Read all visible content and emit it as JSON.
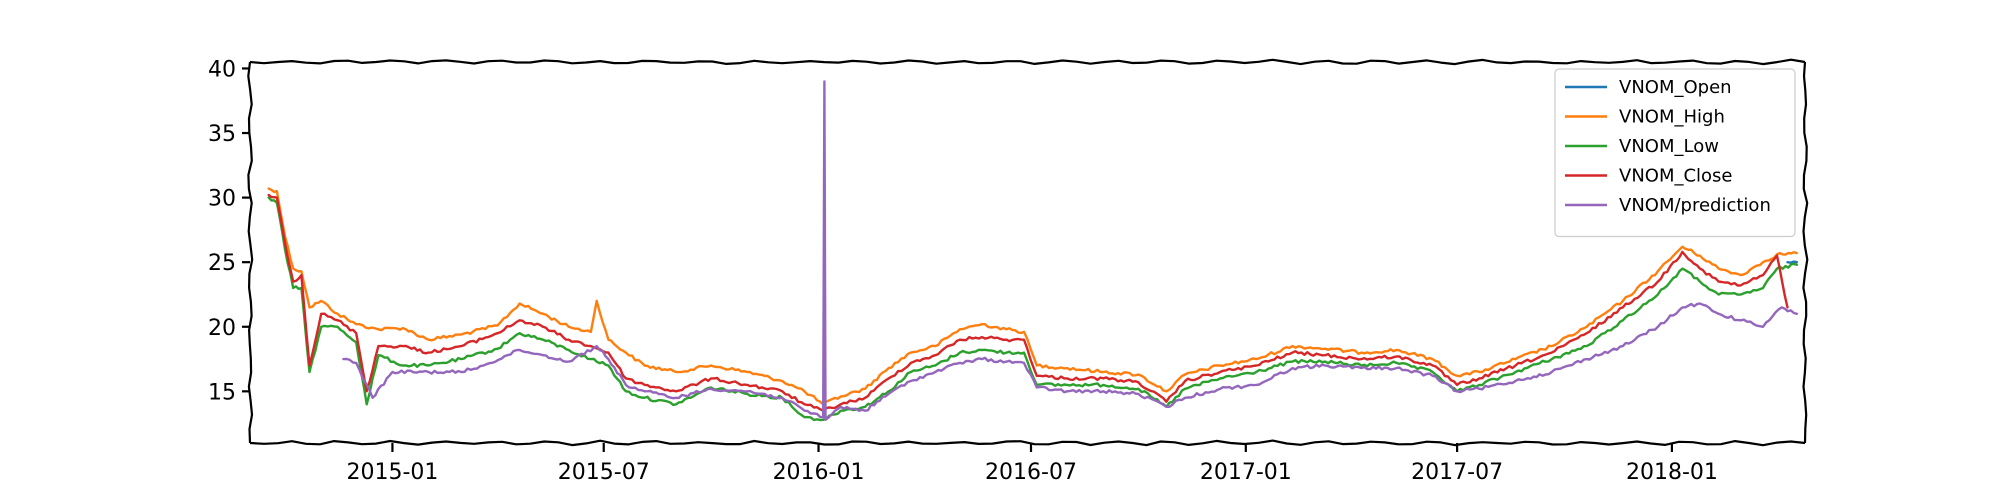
{
  "chart_data": {
    "type": "line",
    "title": "",
    "xlabel": "",
    "ylabel": "",
    "x_range": [
      "2014-09-01",
      "2018-04-25"
    ],
    "ylim": [
      11,
      40.5
    ],
    "x_ticks": [
      {
        "date": "2015-01-01",
        "label": "2015-01"
      },
      {
        "date": "2015-07-01",
        "label": "2015-07"
      },
      {
        "date": "2016-01-01",
        "label": "2016-01"
      },
      {
        "date": "2016-07-01",
        "label": "2016-07"
      },
      {
        "date": "2017-01-01",
        "label": "2017-01"
      },
      {
        "date": "2017-07-01",
        "label": "2017-07"
      },
      {
        "date": "2018-01-01",
        "label": "2018-01"
      }
    ],
    "y_ticks": [
      {
        "value": 15,
        "label": "15"
      },
      {
        "value": 20,
        "label": "20"
      },
      {
        "value": 25,
        "label": "25"
      },
      {
        "value": 30,
        "label": "30"
      },
      {
        "value": 35,
        "label": "35"
      },
      {
        "value": 40,
        "label": "40"
      }
    ],
    "grid": false,
    "legend_position": "top-right",
    "series": [
      {
        "name": "VNOM_Open",
        "color": "#1f77b4",
        "points": [
          [
            "2018-04-10",
            25.0
          ],
          [
            "2018-04-18",
            25.0
          ]
        ]
      },
      {
        "name": "VNOM_High",
        "color": "#ff7f0e",
        "points": [
          [
            "2014-09-17",
            30.7
          ],
          [
            "2014-09-24",
            30.5
          ],
          [
            "2014-10-01",
            27.0
          ],
          [
            "2014-10-08",
            24.5
          ],
          [
            "2014-10-15",
            24.3
          ],
          [
            "2014-10-22",
            21.5
          ],
          [
            "2014-11-01",
            22.0
          ],
          [
            "2014-11-15",
            21.0
          ],
          [
            "2014-12-01",
            20.2
          ],
          [
            "2014-12-20",
            19.8
          ],
          [
            "2015-01-10",
            19.9
          ],
          [
            "2015-02-01",
            19.0
          ],
          [
            "2015-03-01",
            19.4
          ],
          [
            "2015-04-01",
            20.1
          ],
          [
            "2015-04-20",
            21.8
          ],
          [
            "2015-05-10",
            21.0
          ],
          [
            "2015-06-01",
            20.0
          ],
          [
            "2015-06-20",
            19.6
          ],
          [
            "2015-06-25",
            22.0
          ],
          [
            "2015-07-05",
            19.0
          ],
          [
            "2015-07-20",
            18.0
          ],
          [
            "2015-08-05",
            17.0
          ],
          [
            "2015-09-01",
            16.5
          ],
          [
            "2015-10-01",
            17.0
          ],
          [
            "2015-11-01",
            16.5
          ],
          [
            "2015-12-01",
            15.8
          ],
          [
            "2015-12-20",
            15.0
          ],
          [
            "2016-01-05",
            14.0
          ],
          [
            "2016-01-20",
            14.6
          ],
          [
            "2016-02-10",
            15.2
          ],
          [
            "2016-03-01",
            16.8
          ],
          [
            "2016-03-20",
            18.0
          ],
          [
            "2016-04-10",
            18.5
          ],
          [
            "2016-05-01",
            19.8
          ],
          [
            "2016-05-20",
            20.2
          ],
          [
            "2016-06-10",
            19.8
          ],
          [
            "2016-06-25",
            19.6
          ],
          [
            "2016-07-06",
            17.0
          ],
          [
            "2016-08-01",
            16.8
          ],
          [
            "2016-09-01",
            16.5
          ],
          [
            "2016-10-01",
            16.3
          ],
          [
            "2016-10-25",
            15.0
          ],
          [
            "2016-11-10",
            16.3
          ],
          [
            "2016-12-10",
            17.0
          ],
          [
            "2017-01-10",
            17.5
          ],
          [
            "2017-02-10",
            18.5
          ],
          [
            "2017-03-10",
            18.3
          ],
          [
            "2017-04-10",
            18.0
          ],
          [
            "2017-05-10",
            18.2
          ],
          [
            "2017-06-10",
            17.5
          ],
          [
            "2017-07-01",
            16.2
          ],
          [
            "2017-07-20",
            16.5
          ],
          [
            "2017-08-20",
            17.5
          ],
          [
            "2017-09-20",
            18.5
          ],
          [
            "2017-10-20",
            20.0
          ],
          [
            "2017-11-20",
            22.0
          ],
          [
            "2017-12-20",
            24.3
          ],
          [
            "2018-01-10",
            26.2
          ],
          [
            "2018-01-25",
            25.5
          ],
          [
            "2018-02-10",
            24.5
          ],
          [
            "2018-03-01",
            24.0
          ],
          [
            "2018-03-20",
            25.0
          ],
          [
            "2018-04-01",
            25.6
          ],
          [
            "2018-04-18",
            25.7
          ]
        ]
      },
      {
        "name": "VNOM_Low",
        "color": "#2ca02c",
        "points": [
          [
            "2014-09-17",
            30.0
          ],
          [
            "2014-09-24",
            29.6
          ],
          [
            "2014-10-01",
            26.0
          ],
          [
            "2014-10-08",
            23.0
          ],
          [
            "2014-10-15",
            23.0
          ],
          [
            "2014-10-22",
            16.5
          ],
          [
            "2014-11-01",
            20.0
          ],
          [
            "2014-11-15",
            20.0
          ],
          [
            "2014-12-01",
            18.8
          ],
          [
            "2014-12-10",
            14.0
          ],
          [
            "2014-12-20",
            17.8
          ],
          [
            "2015-01-10",
            17.0
          ],
          [
            "2015-02-01",
            17.0
          ],
          [
            "2015-03-01",
            17.5
          ],
          [
            "2015-04-01",
            18.3
          ],
          [
            "2015-04-20",
            19.5
          ],
          [
            "2015-05-10",
            19.0
          ],
          [
            "2015-06-01",
            18.2
          ],
          [
            "2015-06-20",
            17.5
          ],
          [
            "2015-07-05",
            17.0
          ],
          [
            "2015-07-20",
            15.0
          ],
          [
            "2015-08-05",
            14.5
          ],
          [
            "2015-09-01",
            14.0
          ],
          [
            "2015-10-01",
            15.3
          ],
          [
            "2015-11-01",
            14.8
          ],
          [
            "2015-12-01",
            14.5
          ],
          [
            "2015-12-20",
            13.0
          ],
          [
            "2016-01-05",
            12.8
          ],
          [
            "2016-01-20",
            13.5
          ],
          [
            "2016-02-10",
            13.8
          ],
          [
            "2016-03-01",
            15.0
          ],
          [
            "2016-03-20",
            16.5
          ],
          [
            "2016-04-10",
            17.0
          ],
          [
            "2016-05-01",
            18.0
          ],
          [
            "2016-05-20",
            18.2
          ],
          [
            "2016-06-10",
            18.0
          ],
          [
            "2016-06-25",
            18.0
          ],
          [
            "2016-07-06",
            15.5
          ],
          [
            "2016-08-01",
            15.5
          ],
          [
            "2016-09-01",
            15.5
          ],
          [
            "2016-10-01",
            15.2
          ],
          [
            "2016-10-25",
            13.8
          ],
          [
            "2016-11-10",
            15.2
          ],
          [
            "2016-12-10",
            16.0
          ],
          [
            "2017-01-10",
            16.5
          ],
          [
            "2017-02-10",
            17.3
          ],
          [
            "2017-03-10",
            17.3
          ],
          [
            "2017-04-10",
            17.0
          ],
          [
            "2017-05-10",
            17.2
          ],
          [
            "2017-06-10",
            16.5
          ],
          [
            "2017-07-01",
            15.0
          ],
          [
            "2017-07-20",
            15.5
          ],
          [
            "2017-08-20",
            16.5
          ],
          [
            "2017-09-20",
            17.5
          ],
          [
            "2017-10-20",
            18.5
          ],
          [
            "2017-11-20",
            20.5
          ],
          [
            "2017-12-20",
            22.5
          ],
          [
            "2018-01-10",
            24.5
          ],
          [
            "2018-01-25",
            23.5
          ],
          [
            "2018-02-10",
            22.5
          ],
          [
            "2018-03-01",
            22.5
          ],
          [
            "2018-03-20",
            23.0
          ],
          [
            "2018-04-01",
            24.5
          ],
          [
            "2018-04-18",
            24.8
          ]
        ]
      },
      {
        "name": "VNOM_Close",
        "color": "#d62728",
        "points": [
          [
            "2014-09-17",
            30.2
          ],
          [
            "2014-09-24",
            30.0
          ],
          [
            "2014-10-01",
            26.5
          ],
          [
            "2014-10-08",
            23.5
          ],
          [
            "2014-10-15",
            24.0
          ],
          [
            "2014-10-22",
            17.0
          ],
          [
            "2014-11-01",
            21.0
          ],
          [
            "2014-11-15",
            20.5
          ],
          [
            "2014-12-01",
            19.5
          ],
          [
            "2014-12-10",
            15.0
          ],
          [
            "2014-12-20",
            18.5
          ],
          [
            "2015-01-10",
            18.5
          ],
          [
            "2015-02-01",
            18.0
          ],
          [
            "2015-03-01",
            18.5
          ],
          [
            "2015-04-01",
            19.5
          ],
          [
            "2015-04-20",
            20.5
          ],
          [
            "2015-05-10",
            20.0
          ],
          [
            "2015-06-01",
            19.0
          ],
          [
            "2015-06-20",
            18.5
          ],
          [
            "2015-07-05",
            18.0
          ],
          [
            "2015-07-20",
            16.0
          ],
          [
            "2015-08-05",
            15.5
          ],
          [
            "2015-09-01",
            15.0
          ],
          [
            "2015-10-01",
            16.0
          ],
          [
            "2015-11-01",
            15.5
          ],
          [
            "2015-12-01",
            15.0
          ],
          [
            "2015-12-20",
            14.0
          ],
          [
            "2016-01-05",
            13.5
          ],
          [
            "2016-01-20",
            14.0
          ],
          [
            "2016-02-10",
            14.5
          ],
          [
            "2016-03-01",
            16.0
          ],
          [
            "2016-03-20",
            17.2
          ],
          [
            "2016-04-10",
            17.8
          ],
          [
            "2016-05-01",
            19.0
          ],
          [
            "2016-05-20",
            19.2
          ],
          [
            "2016-06-10",
            19.0
          ],
          [
            "2016-06-25",
            19.0
          ],
          [
            "2016-07-06",
            16.2
          ],
          [
            "2016-08-01",
            16.0
          ],
          [
            "2016-09-01",
            16.0
          ],
          [
            "2016-10-01",
            15.7
          ],
          [
            "2016-10-25",
            14.2
          ],
          [
            "2016-11-10",
            15.8
          ],
          [
            "2016-12-10",
            16.5
          ],
          [
            "2017-01-10",
            17.0
          ],
          [
            "2017-02-10",
            18.0
          ],
          [
            "2017-03-10",
            17.8
          ],
          [
            "2017-04-10",
            17.5
          ],
          [
            "2017-05-10",
            17.7
          ],
          [
            "2017-06-10",
            17.0
          ],
          [
            "2017-07-01",
            15.5
          ],
          [
            "2017-07-20",
            16.0
          ],
          [
            "2017-08-20",
            17.0
          ],
          [
            "2017-09-20",
            18.0
          ],
          [
            "2017-10-20",
            19.5
          ],
          [
            "2017-11-20",
            21.5
          ],
          [
            "2017-12-20",
            23.5
          ],
          [
            "2018-01-10",
            25.8
          ],
          [
            "2018-01-25",
            24.5
          ],
          [
            "2018-02-10",
            23.5
          ],
          [
            "2018-03-01",
            23.2
          ],
          [
            "2018-03-20",
            24.0
          ],
          [
            "2018-04-01",
            25.5
          ],
          [
            "2018-04-10",
            21.5
          ]
        ]
      },
      {
        "name": "VNOM/prediction",
        "color": "#9467bd",
        "points": [
          [
            "2014-11-20",
            17.5
          ],
          [
            "2014-12-01",
            17.2
          ],
          [
            "2014-12-15",
            14.5
          ],
          [
            "2015-01-01",
            16.5
          ],
          [
            "2015-02-01",
            16.5
          ],
          [
            "2015-03-01",
            16.5
          ],
          [
            "2015-03-20",
            17.0
          ],
          [
            "2015-04-20",
            18.2
          ],
          [
            "2015-05-10",
            17.8
          ],
          [
            "2015-06-01",
            17.3
          ],
          [
            "2015-06-25",
            18.5
          ],
          [
            "2015-07-05",
            17.5
          ],
          [
            "2015-07-20",
            15.5
          ],
          [
            "2015-08-05",
            15.0
          ],
          [
            "2015-09-01",
            14.5
          ],
          [
            "2015-10-01",
            15.2
          ],
          [
            "2015-11-01",
            15.0
          ],
          [
            "2015-12-01",
            14.5
          ],
          [
            "2015-12-20",
            13.5
          ],
          [
            "2016-01-05",
            13.0
          ],
          [
            "2016-01-06",
            39.0
          ],
          [
            "2016-01-07",
            12.8
          ],
          [
            "2016-01-20",
            13.8
          ],
          [
            "2016-02-10",
            13.5
          ],
          [
            "2016-03-01",
            14.8
          ],
          [
            "2016-03-20",
            15.8
          ],
          [
            "2016-04-10",
            16.5
          ],
          [
            "2016-05-01",
            17.2
          ],
          [
            "2016-05-20",
            17.5
          ],
          [
            "2016-06-10",
            17.3
          ],
          [
            "2016-06-25",
            17.2
          ],
          [
            "2016-07-06",
            15.3
          ],
          [
            "2016-08-01",
            15.0
          ],
          [
            "2016-09-01",
            15.0
          ],
          [
            "2016-10-01",
            14.8
          ],
          [
            "2016-10-25",
            13.8
          ],
          [
            "2016-11-10",
            14.5
          ],
          [
            "2016-12-10",
            15.2
          ],
          [
            "2017-01-10",
            15.5
          ],
          [
            "2017-02-10",
            16.8
          ],
          [
            "2017-03-10",
            17.0
          ],
          [
            "2017-04-10",
            16.8
          ],
          [
            "2017-05-10",
            16.8
          ],
          [
            "2017-06-10",
            16.2
          ],
          [
            "2017-07-01",
            15.0
          ],
          [
            "2017-07-20",
            15.2
          ],
          [
            "2017-08-20",
            15.8
          ],
          [
            "2017-09-20",
            16.5
          ],
          [
            "2017-10-20",
            17.5
          ],
          [
            "2017-11-20",
            18.5
          ],
          [
            "2017-12-20",
            20.0
          ],
          [
            "2018-01-10",
            21.5
          ],
          [
            "2018-01-25",
            21.8
          ],
          [
            "2018-02-10",
            21.0
          ],
          [
            "2018-03-01",
            20.5
          ],
          [
            "2018-03-20",
            20.0
          ],
          [
            "2018-04-05",
            21.5
          ],
          [
            "2018-04-18",
            21.0
          ]
        ]
      }
    ]
  }
}
